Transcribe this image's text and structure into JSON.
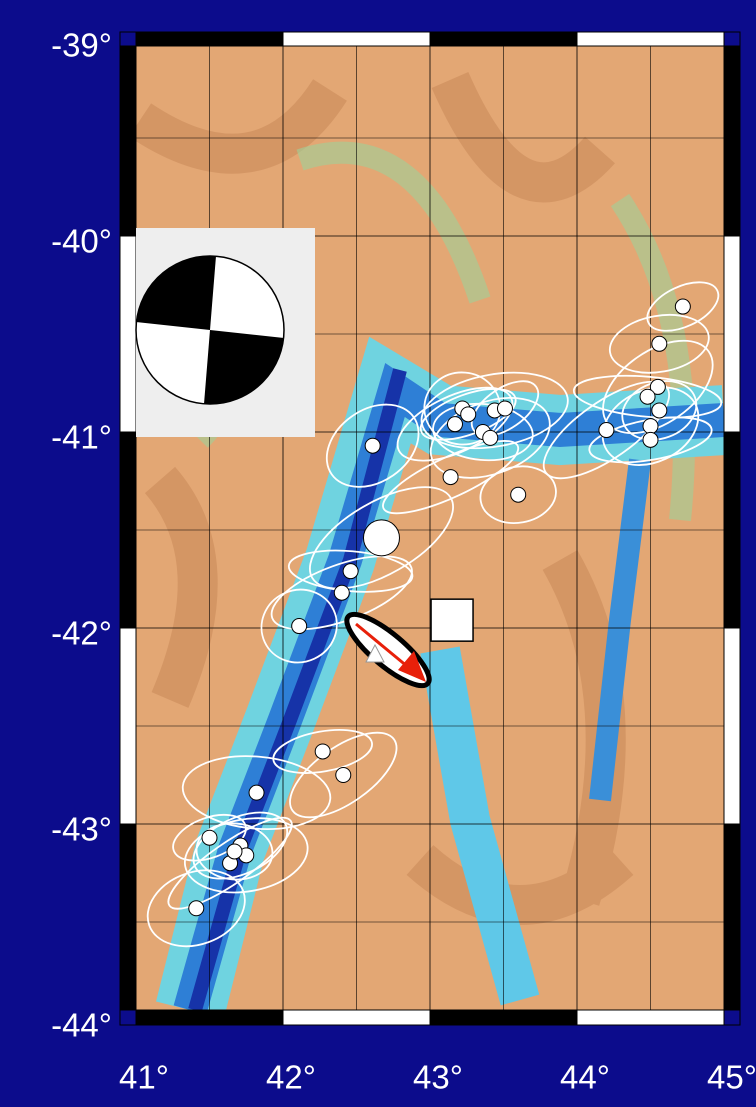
{
  "map": {
    "lat_ticks": [
      {
        "value": -39,
        "label": "-39°"
      },
      {
        "value": -40,
        "label": "-40°"
      },
      {
        "value": -41,
        "label": "-41°"
      },
      {
        "value": -42,
        "label": "-42°"
      },
      {
        "value": -43,
        "label": "-43°"
      },
      {
        "value": -44,
        "label": "-44°"
      }
    ],
    "lon_ticks": [
      {
        "value": 41,
        "label": "41°"
      },
      {
        "value": 42,
        "label": "42°"
      },
      {
        "value": 43,
        "label": "43°"
      },
      {
        "value": 44,
        "label": "44°"
      },
      {
        "value": 45,
        "label": "45°"
      }
    ],
    "events": [
      {
        "lon": 44.72,
        "lat": -40.36
      },
      {
        "lon": 44.56,
        "lat": -40.55
      },
      {
        "lon": 44.55,
        "lat": -40.77
      },
      {
        "lon": 44.48,
        "lat": -40.82
      },
      {
        "lon": 44.56,
        "lat": -40.89
      },
      {
        "lon": 44.5,
        "lat": -40.97
      },
      {
        "lon": 44.5,
        "lat": -41.04
      },
      {
        "lon": 44.2,
        "lat": -40.99
      },
      {
        "lon": 43.22,
        "lat": -40.88
      },
      {
        "lon": 43.26,
        "lat": -40.91
      },
      {
        "lon": 43.17,
        "lat": -40.96
      },
      {
        "lon": 43.44,
        "lat": -40.89
      },
      {
        "lon": 43.51,
        "lat": -40.88
      },
      {
        "lon": 43.36,
        "lat": -41.0
      },
      {
        "lon": 43.41,
        "lat": -41.03
      },
      {
        "lon": 43.14,
        "lat": -41.23
      },
      {
        "lon": 43.6,
        "lat": -41.32
      },
      {
        "lon": 42.61,
        "lat": -41.07
      },
      {
        "lon": 42.46,
        "lat": -41.71
      },
      {
        "lon": 42.4,
        "lat": -41.82
      },
      {
        "lon": 42.11,
        "lat": -41.99
      },
      {
        "lon": 42.27,
        "lat": -42.63
      },
      {
        "lon": 42.41,
        "lat": -42.75
      },
      {
        "lon": 41.82,
        "lat": -42.84
      },
      {
        "lon": 41.5,
        "lat": -43.07
      },
      {
        "lon": 41.71,
        "lat": -43.11
      },
      {
        "lon": 41.75,
        "lat": -43.16
      },
      {
        "lon": 41.64,
        "lat": -43.2
      },
      {
        "lon": 41.67,
        "lat": -43.14
      },
      {
        "lon": 41.41,
        "lat": -43.43
      }
    ],
    "main_event": {
      "lon": 42.67,
      "lat": -41.54
    },
    "station": {
      "lon": 43.15,
      "lat": -41.96
    }
  }
}
